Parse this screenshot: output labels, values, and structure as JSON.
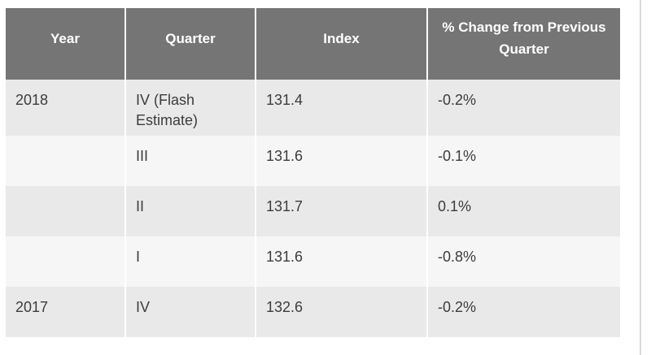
{
  "chart_data": {
    "type": "table",
    "columns": [
      "Year",
      "Quarter",
      "Index",
      "% Change from Previous Quarter"
    ],
    "rows": [
      [
        "2018",
        "IV (Flash Estimate)",
        "131.4",
        "-0.2%"
      ],
      [
        "",
        "III",
        "131.6",
        "-0.1%"
      ],
      [
        "",
        "II",
        "131.7",
        "0.1%"
      ],
      [
        "",
        "I",
        "131.6",
        "-0.8%"
      ],
      [
        "2017",
        "IV",
        "132.6",
        "-0.2%"
      ]
    ],
    "layout_hints": {
      "striped": true,
      "header_position": "top",
      "first_column_groups_years": true
    }
  },
  "colors": {
    "header_bg": "#757575",
    "header_text": "#ffffff",
    "row_stripe_bg": "#e9e9e9",
    "row_plain_bg": "#f7f6f6",
    "body_text": "#3c3c3c",
    "cell_separator": "#ffffff",
    "page_edge_line": "#d9d9d9"
  }
}
